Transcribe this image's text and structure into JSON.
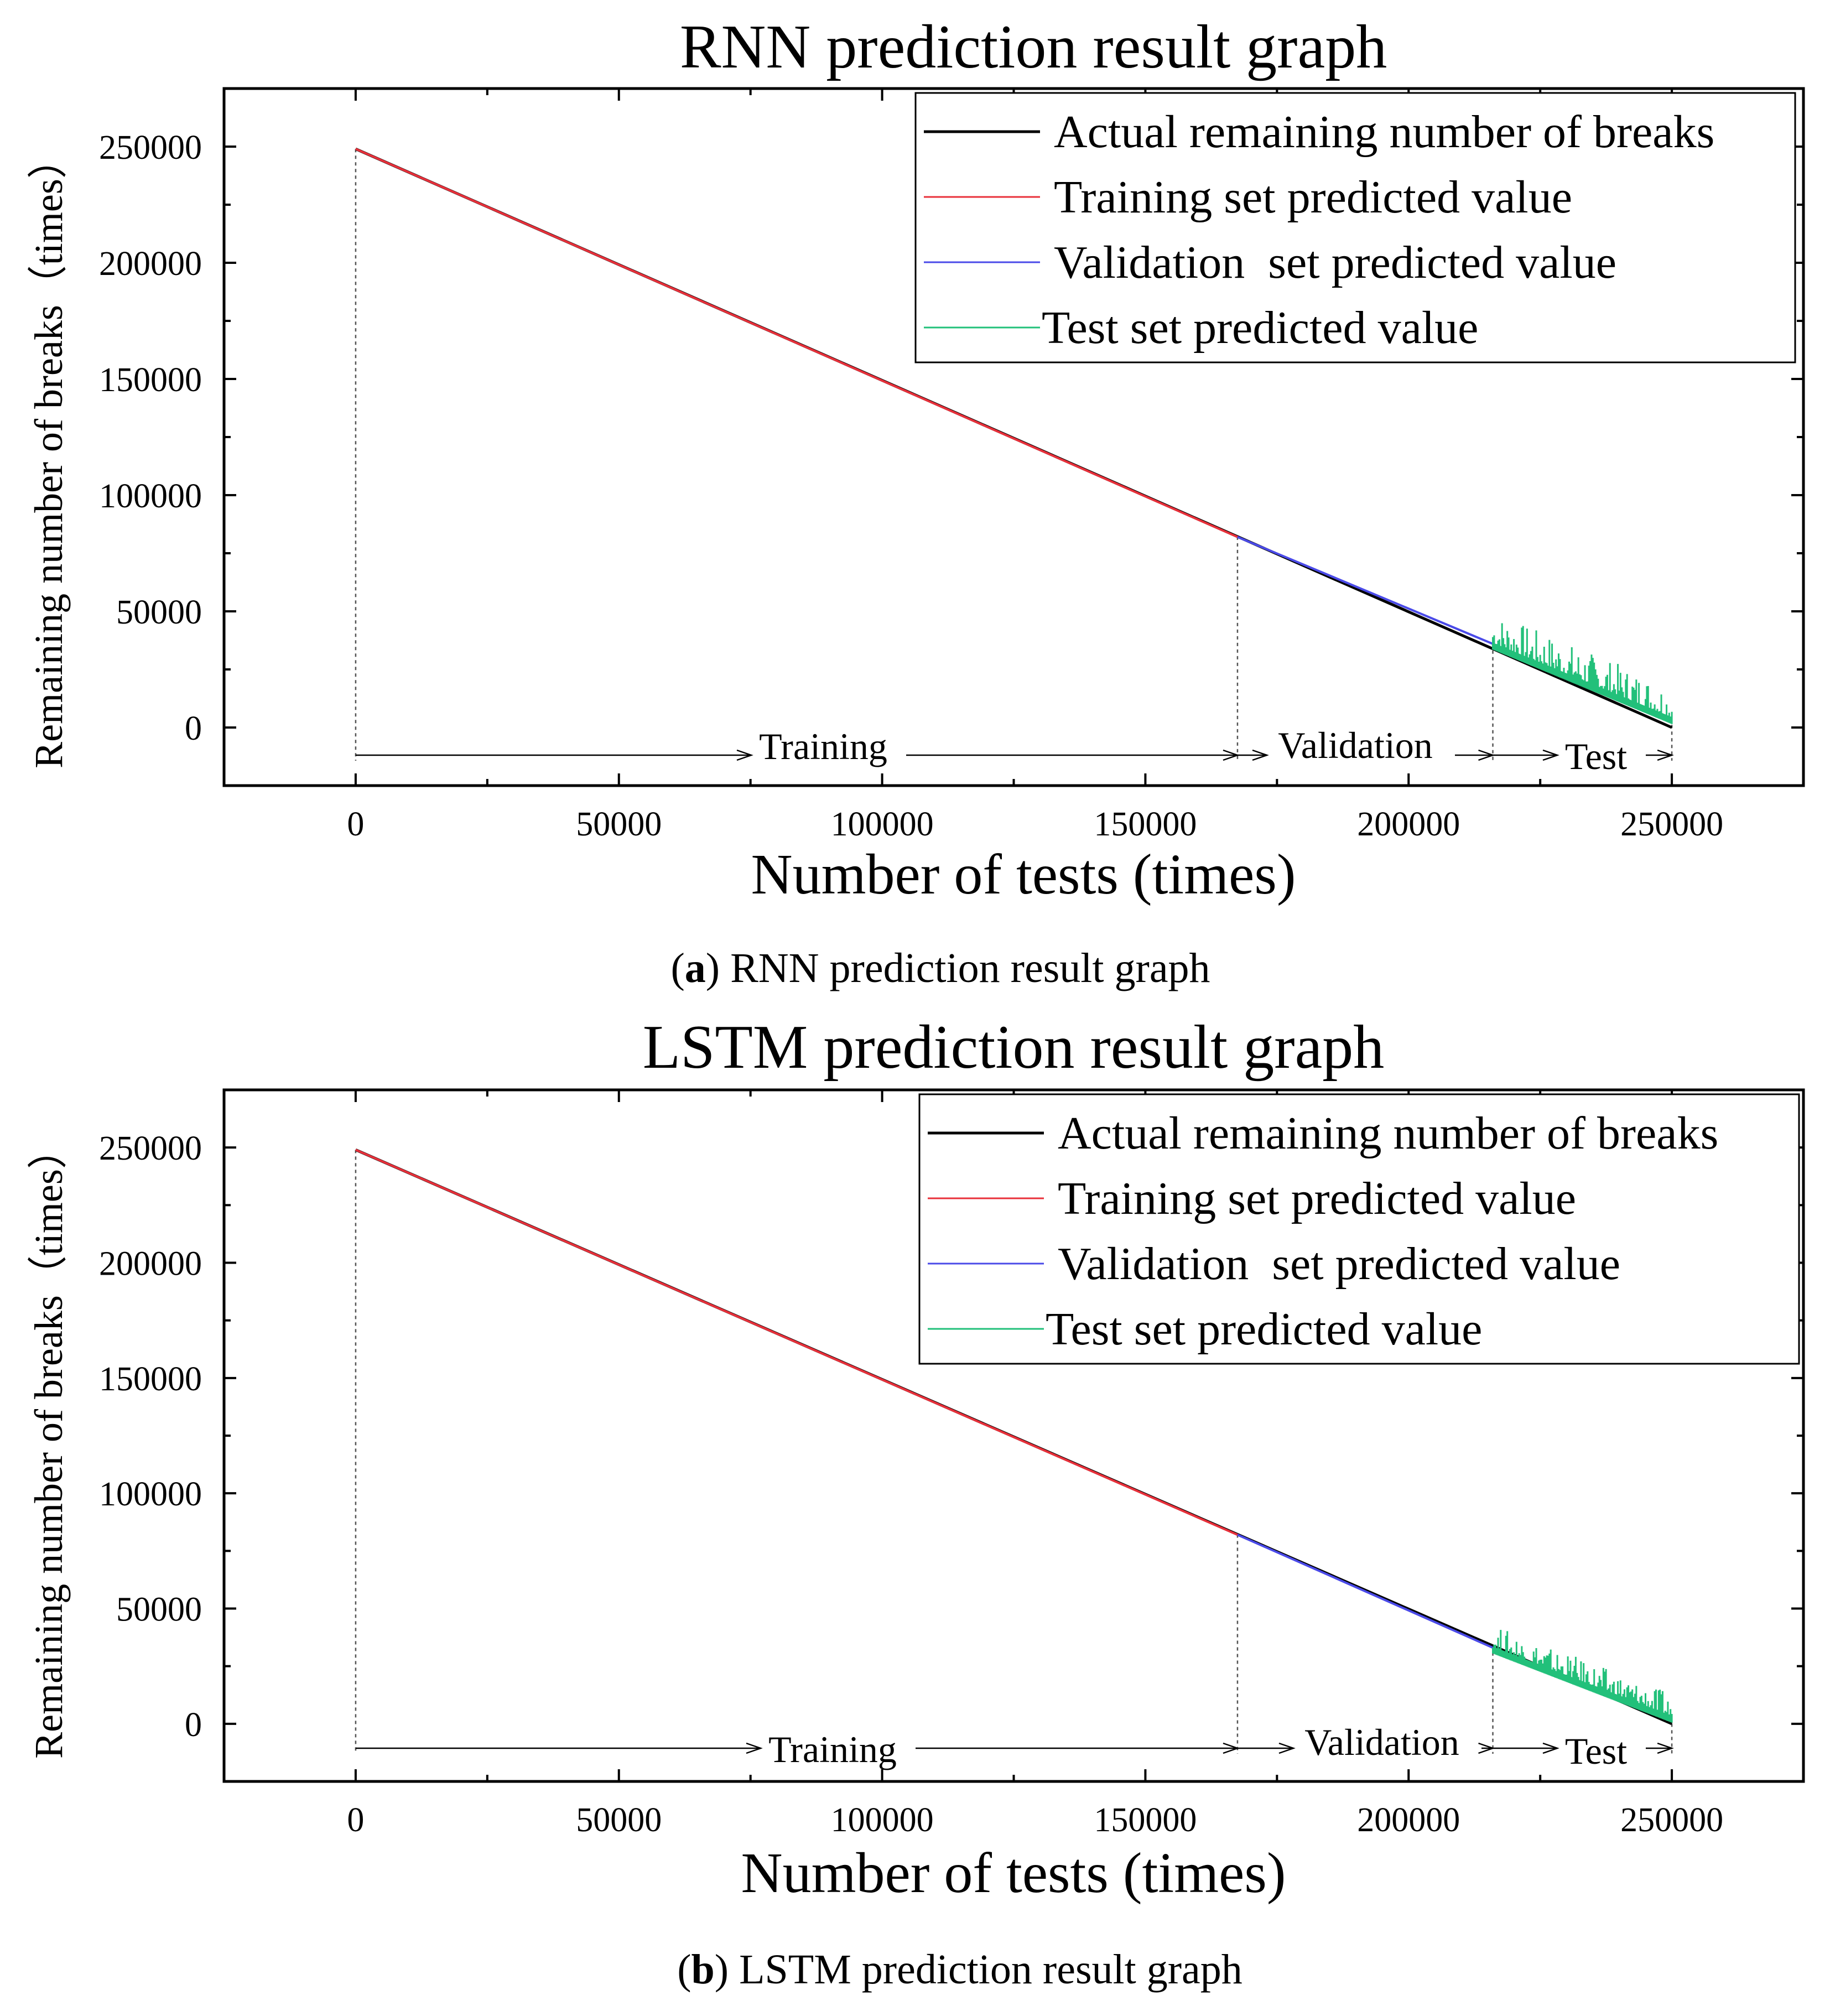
{
  "chart_data": [
    {
      "id": "a",
      "type": "line",
      "title": "RNN prediction result graph",
      "caption_label": "a",
      "caption_text": "RNN prediction result graph",
      "xlabel": "Number of tests (times)",
      "ylabel": "Remaining number of breaks（times）",
      "xlim": [
        -25000,
        275000
      ],
      "ylim": [
        -25000,
        275000
      ],
      "xticks": [
        0,
        50000,
        100000,
        150000,
        200000,
        250000
      ],
      "xtick_labels": [
        "0",
        "50000",
        "100000",
        "150000",
        "200000",
        "250000"
      ],
      "yticks": [
        0,
        50000,
        100000,
        150000,
        200000,
        250000
      ],
      "ytick_labels": [
        "0",
        "50000",
        "100000",
        "150000",
        "200000",
        "250000"
      ],
      "legend": [
        {
          "label": "Actual remaining number of breaks",
          "color": "#000000"
        },
        {
          "label": "Training set predicted value",
          "color": "#e8303a"
        },
        {
          "label": "Validation  set predicted value",
          "color": "#4a4ae8"
        },
        {
          "label": "Test set predicted value",
          "color": "#22c07a"
        }
      ],
      "series": [
        {
          "name": "Actual remaining number of breaks",
          "x": [
            0,
            250000
          ],
          "y": [
            249000,
            0
          ]
        },
        {
          "name": "Training set predicted value",
          "x": [
            0,
            167500
          ],
          "y": [
            249000,
            82000
          ]
        },
        {
          "name": "Validation  set predicted value",
          "x": [
            167500,
            216000
          ],
          "y": [
            82000,
            36000
          ]
        },
        {
          "name": "Test set predicted value",
          "x": [
            216000,
            250000
          ],
          "y": [
            36000,
            4000
          ]
        }
      ],
      "boundaries": [
        0,
        167500,
        216000,
        250000
      ],
      "regions": [
        {
          "label": "Training",
          "x_start": 0,
          "x_end": 167500
        },
        {
          "label": "Validation",
          "x_start": 167500,
          "x_end": 216000
        },
        {
          "label": "Test",
          "x_start": 216000,
          "x_end": 250000
        }
      ]
    },
    {
      "id": "b",
      "type": "line",
      "title": "LSTM prediction result graph",
      "caption_label": "b",
      "caption_text": "LSTM prediction result graph",
      "xlabel": "Number of tests (times)",
      "ylabel": "Remaining number of breaks（times）",
      "xlim": [
        -25000,
        275000
      ],
      "ylim": [
        -25000,
        275000
      ],
      "xticks": [
        0,
        50000,
        100000,
        150000,
        200000,
        250000
      ],
      "xtick_labels": [
        "0",
        "50000",
        "100000",
        "150000",
        "200000",
        "250000"
      ],
      "yticks": [
        0,
        50000,
        100000,
        150000,
        200000,
        250000
      ],
      "ytick_labels": [
        "0",
        "50000",
        "100000",
        "150000",
        "200000",
        "250000"
      ],
      "legend": [
        {
          "label": "Actual remaining number of breaks",
          "color": "#000000"
        },
        {
          "label": "Training set predicted value",
          "color": "#e8303a"
        },
        {
          "label": "Validation  set predicted value",
          "color": "#4a4ae8"
        },
        {
          "label": "Test set predicted value",
          "color": "#22c07a"
        }
      ],
      "series": [
        {
          "name": "Actual remaining number of breaks",
          "x": [
            0,
            250000
          ],
          "y": [
            249000,
            0
          ]
        },
        {
          "name": "Training set predicted value",
          "x": [
            0,
            167500
          ],
          "y": [
            249000,
            82000
          ]
        },
        {
          "name": "Validation  set predicted value",
          "x": [
            167500,
            216000
          ],
          "y": [
            82000,
            33000
          ]
        },
        {
          "name": "Test set predicted value",
          "x": [
            216000,
            250000
          ],
          "y": [
            33000,
            3000
          ]
        }
      ],
      "boundaries": [
        0,
        167500,
        216000,
        250000
      ],
      "regions": [
        {
          "label": "Training",
          "x_start": 0,
          "x_end": 167500
        },
        {
          "label": "Validation",
          "x_start": 167500,
          "x_end": 216000
        },
        {
          "label": "Test",
          "x_start": 216000,
          "x_end": 250000
        }
      ]
    }
  ]
}
